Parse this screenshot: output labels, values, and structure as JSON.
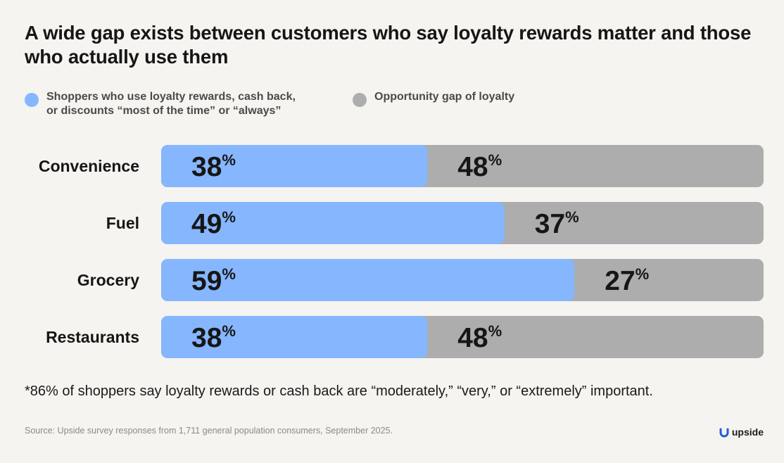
{
  "title": "A wide gap exists between customers who say loyalty rewards matter and those who actually use them",
  "legend": {
    "series1_line1": "Shoppers who use loyalty rewards, cash back,",
    "series1_line2": "or discounts “most of the time” or “always”",
    "series2": "Opportunity gap of loyalty"
  },
  "colors": {
    "blue": "#86b6fe",
    "gray": "#adadad",
    "background": "#f5f4f0"
  },
  "chart_data": {
    "type": "bar",
    "orientation": "horizontal",
    "stacked": true,
    "categories": [
      "Convenience",
      "Fuel",
      "Grocery",
      "Restaurants"
    ],
    "series": [
      {
        "name": "Shoppers who use loyalty rewards, cash back, or discounts “most of the time” or “always”",
        "values": [
          38,
          49,
          59,
          38
        ]
      },
      {
        "name": "Opportunity gap of loyalty",
        "values": [
          48,
          37,
          27,
          48
        ]
      }
    ],
    "unit": "%",
    "xlim": [
      0,
      86
    ],
    "grid": false,
    "legend_position": "top-left"
  },
  "footnote": "*86% of shoppers say loyalty rewards or cash back are “moderately,” “very,” or “extremely” important.",
  "source": "Source: Upside survey responses from 1,711 general population consumers, September 2025.",
  "logo_text": "upside",
  "logo_icon": "upside-logo-icon"
}
